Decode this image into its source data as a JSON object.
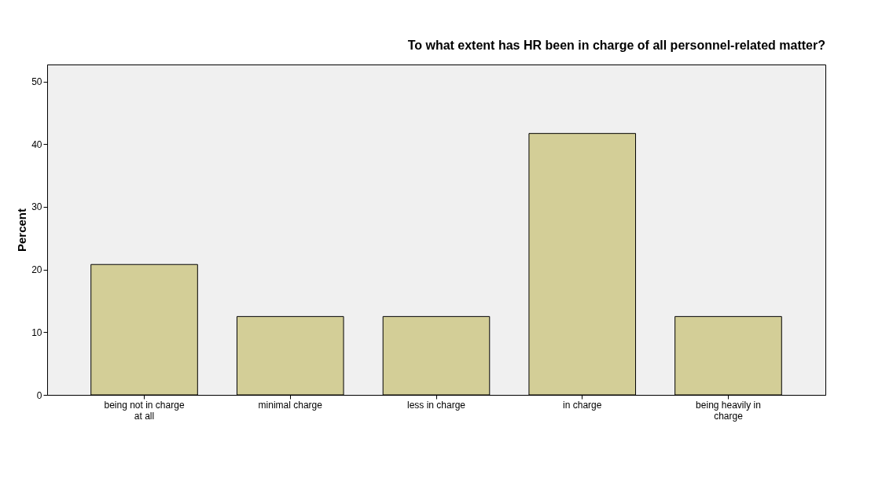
{
  "chart_data": {
    "type": "bar",
    "title": "To what extent has HR been in charge of all personnel-related matter?",
    "ylabel": "Percent",
    "categories": [
      "being not in charge at all",
      "minimal charge",
      "less in charge",
      "in charge",
      "being heavily in charge"
    ],
    "values": [
      20.8,
      12.5,
      12.5,
      41.7,
      12.5
    ],
    "color": "#d3ce97",
    "ylim": [
      0,
      52.7
    ],
    "yticks": [
      0,
      10,
      20,
      30,
      40,
      50
    ],
    "grid": false
  }
}
